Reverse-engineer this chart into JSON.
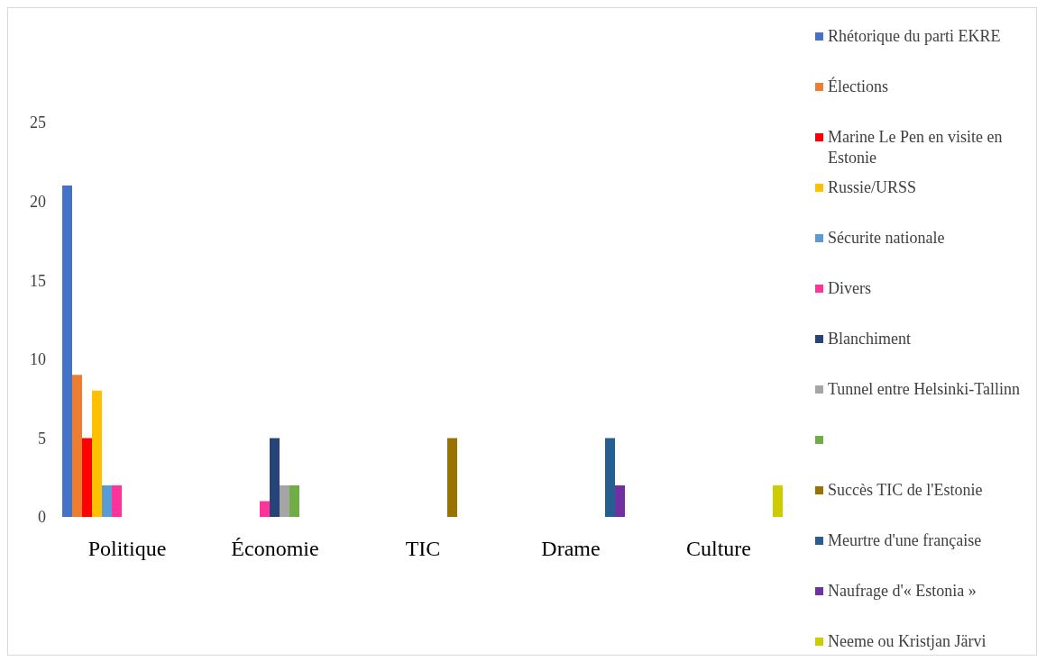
{
  "chart_data": {
    "type": "bar",
    "categories": [
      "Politique",
      "Économie",
      "TIC",
      "Drame",
      "Culture"
    ],
    "series": [
      {
        "name": "Rhétorique du parti EKRE",
        "color": "#4472c4",
        "values": [
          21,
          null,
          null,
          null,
          null
        ]
      },
      {
        "name": "Élections",
        "color": "#ed7d31",
        "values": [
          9,
          null,
          null,
          null,
          null
        ]
      },
      {
        "name": "Marine Le Pen en visite en Estonie",
        "color": "#ff0000",
        "values": [
          5,
          null,
          null,
          null,
          null
        ]
      },
      {
        "name": "Russie/URSS",
        "color": "#ffc000",
        "values": [
          8,
          null,
          null,
          null,
          null
        ]
      },
      {
        "name": "Sécurite nationale",
        "color": "#5b9bd5",
        "values": [
          2,
          null,
          null,
          null,
          null
        ]
      },
      {
        "name": "Divers",
        "color": "#ff3399",
        "values": [
          2,
          1,
          null,
          null,
          null
        ]
      },
      {
        "name": "Blanchiment",
        "color": "#264478",
        "values": [
          null,
          5,
          null,
          null,
          null
        ]
      },
      {
        "name": "Tunnel entre Helsinki-Tallinn",
        "color": "#a5a5a5",
        "values": [
          null,
          2,
          null,
          null,
          null
        ]
      },
      {
        "color": "#70ad47",
        "values": [
          null,
          2,
          null,
          null,
          null
        ]
      },
      {
        "name": "Succès TIC de l'Estonie",
        "color": "#997300",
        "values": [
          null,
          null,
          5,
          null,
          null
        ]
      },
      {
        "name": "Meurtre d'une française",
        "color": "#255e91",
        "values": [
          null,
          null,
          null,
          5,
          null
        ]
      },
      {
        "name": "Naufrage d'« Estonia »",
        "color": "#7030a0",
        "values": [
          null,
          null,
          null,
          2,
          null
        ]
      },
      {
        "name": "Neeme ou Kristjan Järvi",
        "color": "#cccc00",
        "values": [
          null,
          null,
          null,
          null,
          2
        ]
      }
    ],
    "ylim": [
      0,
      25
    ],
    "yticks": [
      0,
      5,
      10,
      15,
      20,
      25
    ],
    "grid": false,
    "legend": "right"
  }
}
